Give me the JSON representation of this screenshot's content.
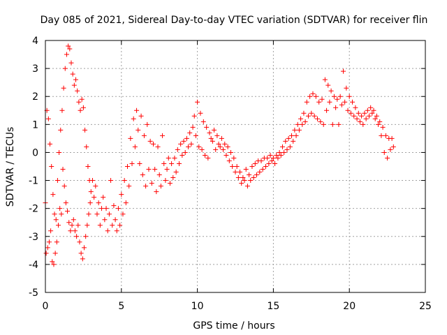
{
  "chart_data": {
    "type": "scatter",
    "title": "Day 085 of 2021, Sidereal Day-to-day VTEC variation (SDTVAR) for receiver flin",
    "xlabel": "GPS time / hours",
    "ylabel": "SDTVAR / TECUs",
    "xlim": [
      0,
      25
    ],
    "ylim": [
      -5,
      4
    ],
    "x_ticks": [
      0,
      5,
      10,
      15,
      20,
      25
    ],
    "y_ticks": [
      -5,
      -4,
      -3,
      -2,
      -1,
      0,
      1,
      2,
      3,
      4
    ],
    "x_tick_labels": [
      "0",
      "5",
      "10",
      "15",
      "20",
      "25"
    ],
    "y_tick_labels": [
      "-5",
      "-4",
      "-3",
      "-2",
      "-1",
      "0",
      "1",
      "2",
      "3",
      "4"
    ],
    "grid": true,
    "marker": "+",
    "marker_color": "#ff0000",
    "series": [
      {
        "name": "SDTVAR",
        "points": [
          [
            0.0,
            -1.8
          ],
          [
            0.05,
            -3.6
          ],
          [
            0.1,
            1.5
          ],
          [
            0.15,
            -3.4
          ],
          [
            0.2,
            1.2
          ],
          [
            0.25,
            -3.2
          ],
          [
            0.3,
            0.3
          ],
          [
            0.35,
            -2.8
          ],
          [
            0.4,
            -0.5
          ],
          [
            0.45,
            -3.9
          ],
          [
            0.5,
            -1.5
          ],
          [
            0.55,
            -4.0
          ],
          [
            0.6,
            -2.2
          ],
          [
            0.65,
            -3.6
          ],
          [
            0.7,
            -2.4
          ],
          [
            0.75,
            -3.2
          ],
          [
            0.8,
            -1.0
          ],
          [
            0.85,
            -2.6
          ],
          [
            0.9,
            0.0
          ],
          [
            0.95,
            -2.0
          ],
          [
            1.0,
            0.8
          ],
          [
            1.05,
            -2.2
          ],
          [
            1.1,
            1.5
          ],
          [
            1.15,
            -0.6
          ],
          [
            1.2,
            2.3
          ],
          [
            1.25,
            -1.2
          ],
          [
            1.3,
            3.0
          ],
          [
            1.35,
            -1.8
          ],
          [
            1.4,
            3.5
          ],
          [
            1.45,
            -2.1
          ],
          [
            1.5,
            3.8
          ],
          [
            1.55,
            -2.5
          ],
          [
            1.6,
            3.7
          ],
          [
            1.65,
            -2.8
          ],
          [
            1.7,
            3.2
          ],
          [
            1.75,
            -2.6
          ],
          [
            1.8,
            2.8
          ],
          [
            1.85,
            -2.4
          ],
          [
            1.9,
            2.4
          ],
          [
            1.95,
            -2.8
          ],
          [
            2.0,
            2.6
          ],
          [
            2.05,
            -3.0
          ],
          [
            2.1,
            2.2
          ],
          [
            2.15,
            -2.6
          ],
          [
            2.2,
            1.8
          ],
          [
            2.25,
            -3.2
          ],
          [
            2.3,
            1.5
          ],
          [
            2.35,
            -3.6
          ],
          [
            2.4,
            1.9
          ],
          [
            2.45,
            -3.8
          ],
          [
            2.5,
            1.6
          ],
          [
            2.55,
            -3.4
          ],
          [
            2.6,
            0.8
          ],
          [
            2.65,
            -3.0
          ],
          [
            2.7,
            0.2
          ],
          [
            2.75,
            -2.6
          ],
          [
            2.8,
            -0.5
          ],
          [
            2.85,
            -2.2
          ],
          [
            2.9,
            -1.0
          ],
          [
            2.95,
            -1.8
          ],
          [
            3.0,
            -1.4
          ],
          [
            3.1,
            -1.0
          ],
          [
            3.2,
            -1.6
          ],
          [
            3.3,
            -1.2
          ],
          [
            3.4,
            -2.2
          ],
          [
            3.5,
            -1.8
          ],
          [
            3.6,
            -2.6
          ],
          [
            3.7,
            -2.0
          ],
          [
            3.8,
            -1.6
          ],
          [
            3.9,
            -2.4
          ],
          [
            4.0,
            -2.0
          ],
          [
            4.1,
            -2.8
          ],
          [
            4.2,
            -2.2
          ],
          [
            4.3,
            -1.0
          ],
          [
            4.4,
            -2.6
          ],
          [
            4.5,
            -1.9
          ],
          [
            4.6,
            -2.4
          ],
          [
            4.7,
            -2.8
          ],
          [
            4.8,
            -2.0
          ],
          [
            4.9,
            -2.6
          ],
          [
            5.0,
            -1.5
          ],
          [
            5.1,
            -2.2
          ],
          [
            5.2,
            -1.0
          ],
          [
            5.3,
            -1.8
          ],
          [
            5.4,
            -0.5
          ],
          [
            5.5,
            -1.2
          ],
          [
            5.6,
            0.5
          ],
          [
            5.7,
            -0.4
          ],
          [
            5.8,
            1.2
          ],
          [
            5.9,
            0.2
          ],
          [
            6.0,
            1.5
          ],
          [
            6.1,
            0.8
          ],
          [
            6.2,
            -0.4
          ],
          [
            6.3,
            1.3
          ],
          [
            6.4,
            -0.8
          ],
          [
            6.5,
            0.6
          ],
          [
            6.6,
            -1.2
          ],
          [
            6.7,
            1.0
          ],
          [
            6.8,
            -0.6
          ],
          [
            6.9,
            0.4
          ],
          [
            7.0,
            -1.1
          ],
          [
            7.1,
            0.3
          ],
          [
            7.2,
            -0.6
          ],
          [
            7.3,
            -1.4
          ],
          [
            7.4,
            0.2
          ],
          [
            7.5,
            -0.8
          ],
          [
            7.6,
            -1.2
          ],
          [
            7.7,
            0.6
          ],
          [
            7.8,
            -0.4
          ],
          [
            7.9,
            -1.0
          ],
          [
            8.0,
            -0.6
          ],
          [
            8.1,
            -0.2
          ],
          [
            8.2,
            -1.1
          ],
          [
            8.3,
            -0.4
          ],
          [
            8.4,
            -0.9
          ],
          [
            8.5,
            -0.2
          ],
          [
            8.6,
            -0.7
          ],
          [
            8.7,
            0.1
          ],
          [
            8.8,
            -0.4
          ],
          [
            8.9,
            0.3
          ],
          [
            9.0,
            -0.1
          ],
          [
            9.1,
            0.4
          ],
          [
            9.2,
            0.0
          ],
          [
            9.3,
            0.5
          ],
          [
            9.4,
            0.2
          ],
          [
            9.5,
            0.7
          ],
          [
            9.6,
            0.3
          ],
          [
            9.7,
            0.9
          ],
          [
            9.8,
            1.3
          ],
          [
            9.9,
            0.6
          ],
          [
            10.0,
            1.8
          ],
          [
            10.1,
            0.2
          ],
          [
            10.2,
            1.4
          ],
          [
            10.3,
            0.1
          ],
          [
            10.4,
            1.1
          ],
          [
            10.5,
            -0.1
          ],
          [
            10.6,
            0.9
          ],
          [
            10.7,
            -0.2
          ],
          [
            10.8,
            0.7
          ],
          [
            10.9,
            0.5
          ],
          [
            11.0,
            0.4
          ],
          [
            11.1,
            0.8
          ],
          [
            11.2,
            0.1
          ],
          [
            11.3,
            0.6
          ],
          [
            11.4,
            0.3
          ],
          [
            11.5,
            0.2
          ],
          [
            11.6,
            0.5
          ],
          [
            11.7,
            0.1
          ],
          [
            11.8,
            0.3
          ],
          [
            11.9,
            -0.1
          ],
          [
            12.0,
            0.2
          ],
          [
            12.1,
            -0.3
          ],
          [
            12.2,
            0.0
          ],
          [
            12.3,
            -0.5
          ],
          [
            12.4,
            -0.2
          ],
          [
            12.5,
            -0.7
          ],
          [
            12.6,
            -0.5
          ],
          [
            12.7,
            -0.9
          ],
          [
            12.8,
            -0.7
          ],
          [
            12.9,
            -1.1
          ],
          [
            13.0,
            -0.9
          ],
          [
            13.1,
            -1.0
          ],
          [
            13.2,
            -0.6
          ],
          [
            13.3,
            -1.2
          ],
          [
            13.4,
            -0.8
          ],
          [
            13.5,
            -1.0
          ],
          [
            13.6,
            -0.5
          ],
          [
            13.7,
            -0.9
          ],
          [
            13.8,
            -0.4
          ],
          [
            13.9,
            -0.8
          ],
          [
            14.0,
            -0.3
          ],
          [
            14.1,
            -0.7
          ],
          [
            14.2,
            -0.3
          ],
          [
            14.3,
            -0.6
          ],
          [
            14.4,
            -0.2
          ],
          [
            14.5,
            -0.5
          ],
          [
            14.6,
            -0.2
          ],
          [
            14.7,
            -0.4
          ],
          [
            14.8,
            -0.1
          ],
          [
            14.9,
            -0.3
          ],
          [
            15.0,
            -0.2
          ],
          [
            15.1,
            -0.4
          ],
          [
            15.2,
            -0.1
          ],
          [
            15.3,
            -0.2
          ],
          [
            15.4,
            0.0
          ],
          [
            15.5,
            -0.1
          ],
          [
            15.6,
            0.2
          ],
          [
            15.7,
            0.0
          ],
          [
            15.8,
            0.4
          ],
          [
            15.9,
            0.1
          ],
          [
            16.0,
            0.5
          ],
          [
            16.1,
            0.2
          ],
          [
            16.2,
            0.6
          ],
          [
            16.3,
            0.4
          ],
          [
            16.4,
            0.8
          ],
          [
            16.5,
            0.6
          ],
          [
            16.6,
            1.0
          ],
          [
            16.7,
            0.8
          ],
          [
            16.8,
            1.2
          ],
          [
            16.9,
            1.0
          ],
          [
            17.0,
            1.4
          ],
          [
            17.1,
            1.1
          ],
          [
            17.2,
            1.8
          ],
          [
            17.3,
            1.3
          ],
          [
            17.4,
            2.0
          ],
          [
            17.5,
            1.4
          ],
          [
            17.6,
            2.1
          ],
          [
            17.7,
            1.3
          ],
          [
            17.8,
            2.0
          ],
          [
            17.9,
            1.2
          ],
          [
            18.0,
            1.8
          ],
          [
            18.1,
            1.1
          ],
          [
            18.2,
            1.9
          ],
          [
            18.3,
            1.0
          ],
          [
            18.4,
            2.6
          ],
          [
            18.5,
            1.5
          ],
          [
            18.6,
            2.4
          ],
          [
            18.7,
            1.8
          ],
          [
            18.8,
            2.2
          ],
          [
            18.9,
            1.0
          ],
          [
            19.0,
            2.0
          ],
          [
            19.1,
            1.6
          ],
          [
            19.2,
            1.9
          ],
          [
            19.3,
            1.0
          ],
          [
            19.4,
            2.0
          ],
          [
            19.5,
            1.7
          ],
          [
            19.6,
            2.9
          ],
          [
            19.7,
            1.8
          ],
          [
            19.8,
            2.3
          ],
          [
            19.9,
            1.5
          ],
          [
            20.0,
            2.0
          ],
          [
            20.1,
            1.4
          ],
          [
            20.2,
            1.8
          ],
          [
            20.3,
            1.3
          ],
          [
            20.4,
            1.6
          ],
          [
            20.5,
            1.2
          ],
          [
            20.6,
            1.4
          ],
          [
            20.7,
            1.1
          ],
          [
            20.8,
            1.3
          ],
          [
            20.9,
            1.0
          ],
          [
            21.0,
            1.4
          ],
          [
            21.1,
            1.2
          ],
          [
            21.2,
            1.5
          ],
          [
            21.3,
            1.3
          ],
          [
            21.4,
            1.6
          ],
          [
            21.5,
            1.4
          ],
          [
            21.6,
            1.5
          ],
          [
            21.7,
            1.2
          ],
          [
            21.8,
            1.3
          ],
          [
            21.9,
            1.0
          ],
          [
            22.0,
            1.1
          ],
          [
            22.1,
            0.6
          ],
          [
            22.2,
            0.9
          ],
          [
            22.3,
            0.0
          ],
          [
            22.4,
            0.6
          ],
          [
            22.5,
            -0.2
          ],
          [
            22.6,
            0.5
          ],
          [
            22.7,
            0.1
          ],
          [
            22.8,
            0.5
          ],
          [
            22.9,
            0.2
          ]
        ]
      }
    ]
  }
}
